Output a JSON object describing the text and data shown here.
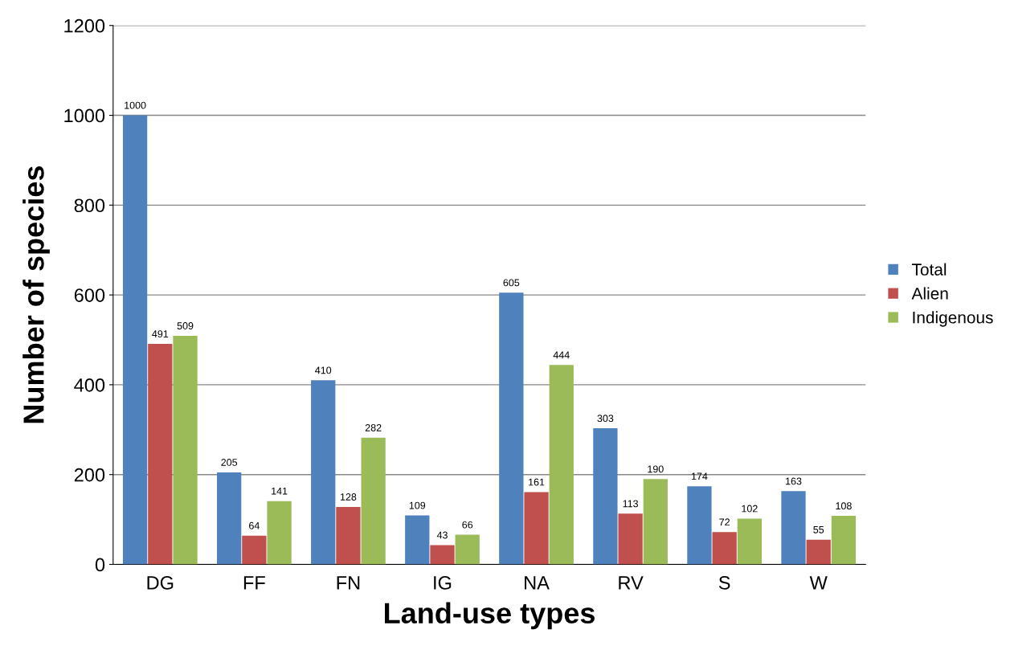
{
  "chart_data": {
    "type": "bar",
    "xlabel": "Land-use types",
    "ylabel": "Number of species",
    "categories": [
      "DG",
      "FF",
      "FN",
      "IG",
      "NA",
      "RV",
      "S",
      "W"
    ],
    "series": [
      {
        "name": "Total",
        "color": "#4f81bd",
        "values": [
          1000,
          205,
          410,
          109,
          605,
          303,
          174,
          163
        ]
      },
      {
        "name": "Alien",
        "color": "#c0504d",
        "values": [
          491,
          64,
          128,
          43,
          161,
          113,
          72,
          55
        ]
      },
      {
        "name": "Indigenous",
        "color": "#9bbb59",
        "values": [
          509,
          141,
          282,
          66,
          444,
          190,
          102,
          108
        ]
      }
    ],
    "ylim": [
      0,
      1200
    ],
    "yticks": [
      0,
      200,
      400,
      600,
      800,
      1000,
      1200
    ],
    "grid": "y",
    "legend": "right",
    "data_labels": true
  }
}
